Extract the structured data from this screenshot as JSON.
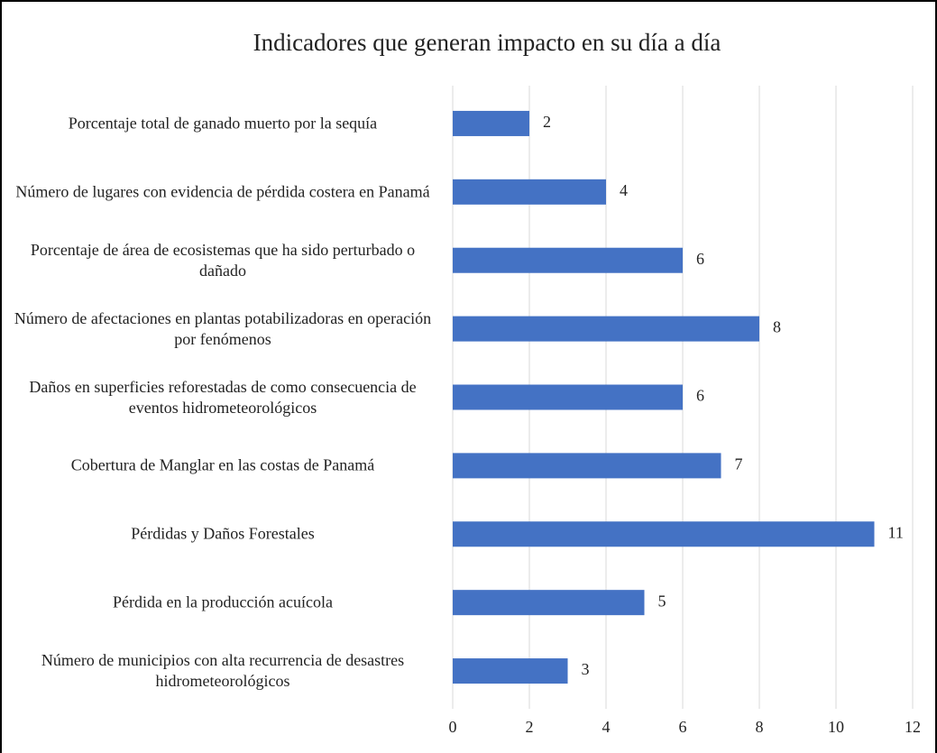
{
  "chart_data": {
    "type": "bar",
    "orientation": "horizontal",
    "title": "Indicadores que generan impacto en su día a día",
    "categories": [
      "Porcentaje total de ganado muerto por la sequía",
      "Número de lugares con evidencia de pérdida costera en Panamá",
      "Porcentaje de área de ecosistemas que ha sido perturbado o dañado",
      "Número de afectaciones en plantas potabilizadoras en operación por fenómenos",
      "Daños en superficies reforestadas de como consecuencia de eventos hidrometeorológicos",
      "Cobertura de Manglar en las costas de Panamá",
      "Pérdidas y Daños Forestales",
      "Pérdida en la producción acuícola",
      "Número de municipios con alta recurrencia de desastres hidrometeorológicos"
    ],
    "values": [
      2,
      4,
      6,
      8,
      6,
      7,
      11,
      5,
      3
    ],
    "color": "#4472c4",
    "xlim": [
      0,
      12
    ],
    "xticks": [
      0,
      2,
      4,
      6,
      8,
      10,
      12
    ],
    "grid": true
  }
}
